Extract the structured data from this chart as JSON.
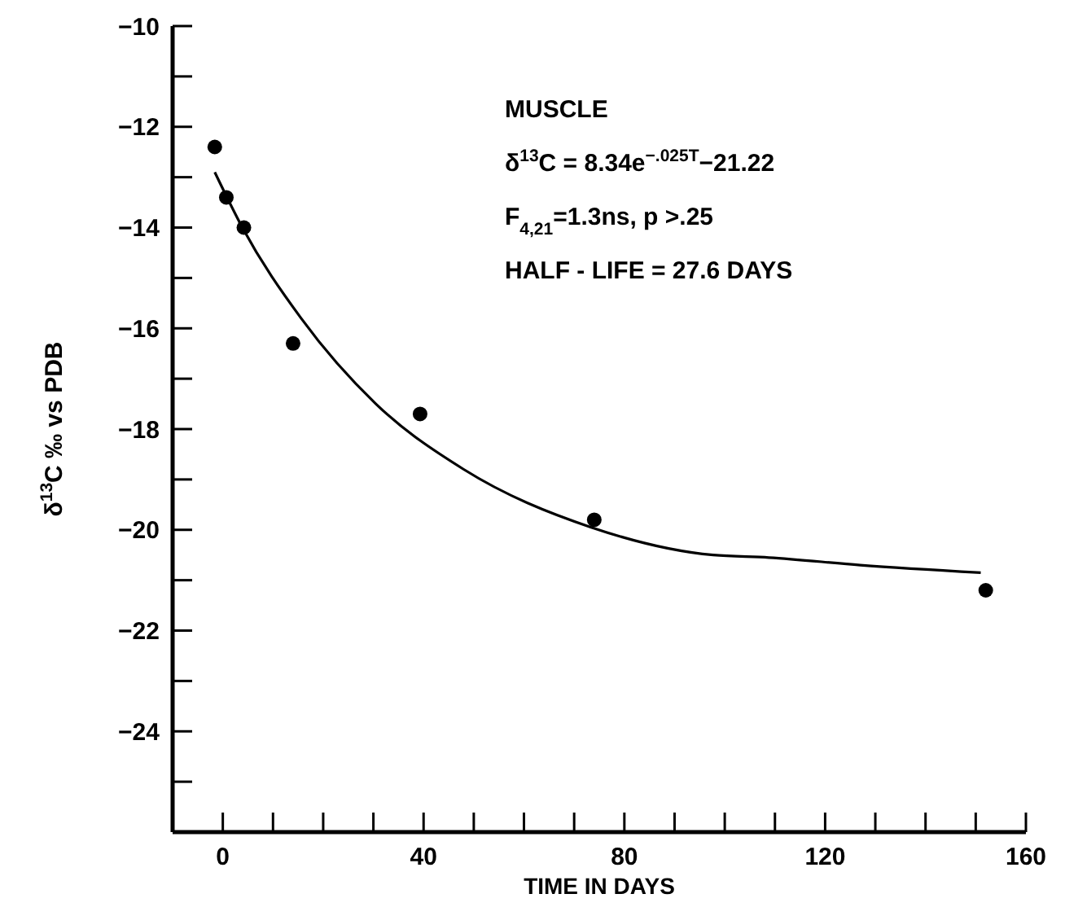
{
  "chart_data": {
    "type": "scatter",
    "xlabel": "TIME IN DAYS",
    "ylabel": "δ$^{13}$C ‰ vs PDB",
    "annotations": [
      "MUSCLE",
      "δ$^{13}$C = 8.34e$^{−.025T}$−21.22",
      "F$_{4,21}$=1.3ns, p >.25",
      "HALF - LIFE = 27.6 DAYS"
    ],
    "xlim": [
      -10,
      160
    ],
    "xticks": [
      0,
      {
        "value": 10,
        "label": null
      },
      {
        "value": 20,
        "label": null
      },
      {
        "value": 30,
        "label": null
      },
      40,
      {
        "value": 50,
        "label": null
      },
      {
        "value": 60,
        "label": null
      },
      {
        "value": 70,
        "label": null
      },
      80,
      {
        "value": 90,
        "label": null
      },
      {
        "value": 100,
        "label": null
      },
      {
        "value": 110,
        "label": null
      },
      120,
      {
        "value": 130,
        "label": null
      },
      {
        "value": 140,
        "label": null
      },
      {
        "value": 150,
        "label": null
      },
      160
    ],
    "ylim": [
      -26,
      -10
    ],
    "yticks": [
      -10,
      {
        "value": -11,
        "label": null
      },
      -12,
      {
        "value": -13,
        "label": null
      },
      -14,
      {
        "value": -15,
        "label": null
      },
      -16,
      {
        "value": -17,
        "label": null
      },
      -18,
      {
        "value": -19,
        "label": null
      },
      -20,
      {
        "value": -21,
        "label": null
      },
      -22,
      {
        "value": -23,
        "label": null
      },
      -24,
      {
        "value": -25,
        "label": null
      }
    ],
    "grid": false,
    "series": [
      {
        "color": "#000000",
        "marker": "circle",
        "x": [
          -1.6,
          0.7,
          4.2,
          14,
          39.3,
          74,
          152
        ],
        "values": [
          -12.4,
          -13.4,
          -14.0,
          -16.3,
          -17.7,
          -19.8,
          -21.2
        ]
      },
      {
        "type": "line",
        "color": "#000000",
        "marker": "none",
        "line_style": "solid",
        "x": [
          -1.6,
          3.9,
          15.6,
          30.5,
          48,
          73.4,
          97.7,
          108.8,
          127,
          151
        ],
        "values": [
          -12.9,
          -14.0,
          -15.8,
          -17.5,
          -18.8,
          -19.95,
          -20.5,
          -20.55,
          -20.7,
          -20.85
        ]
      }
    ]
  }
}
